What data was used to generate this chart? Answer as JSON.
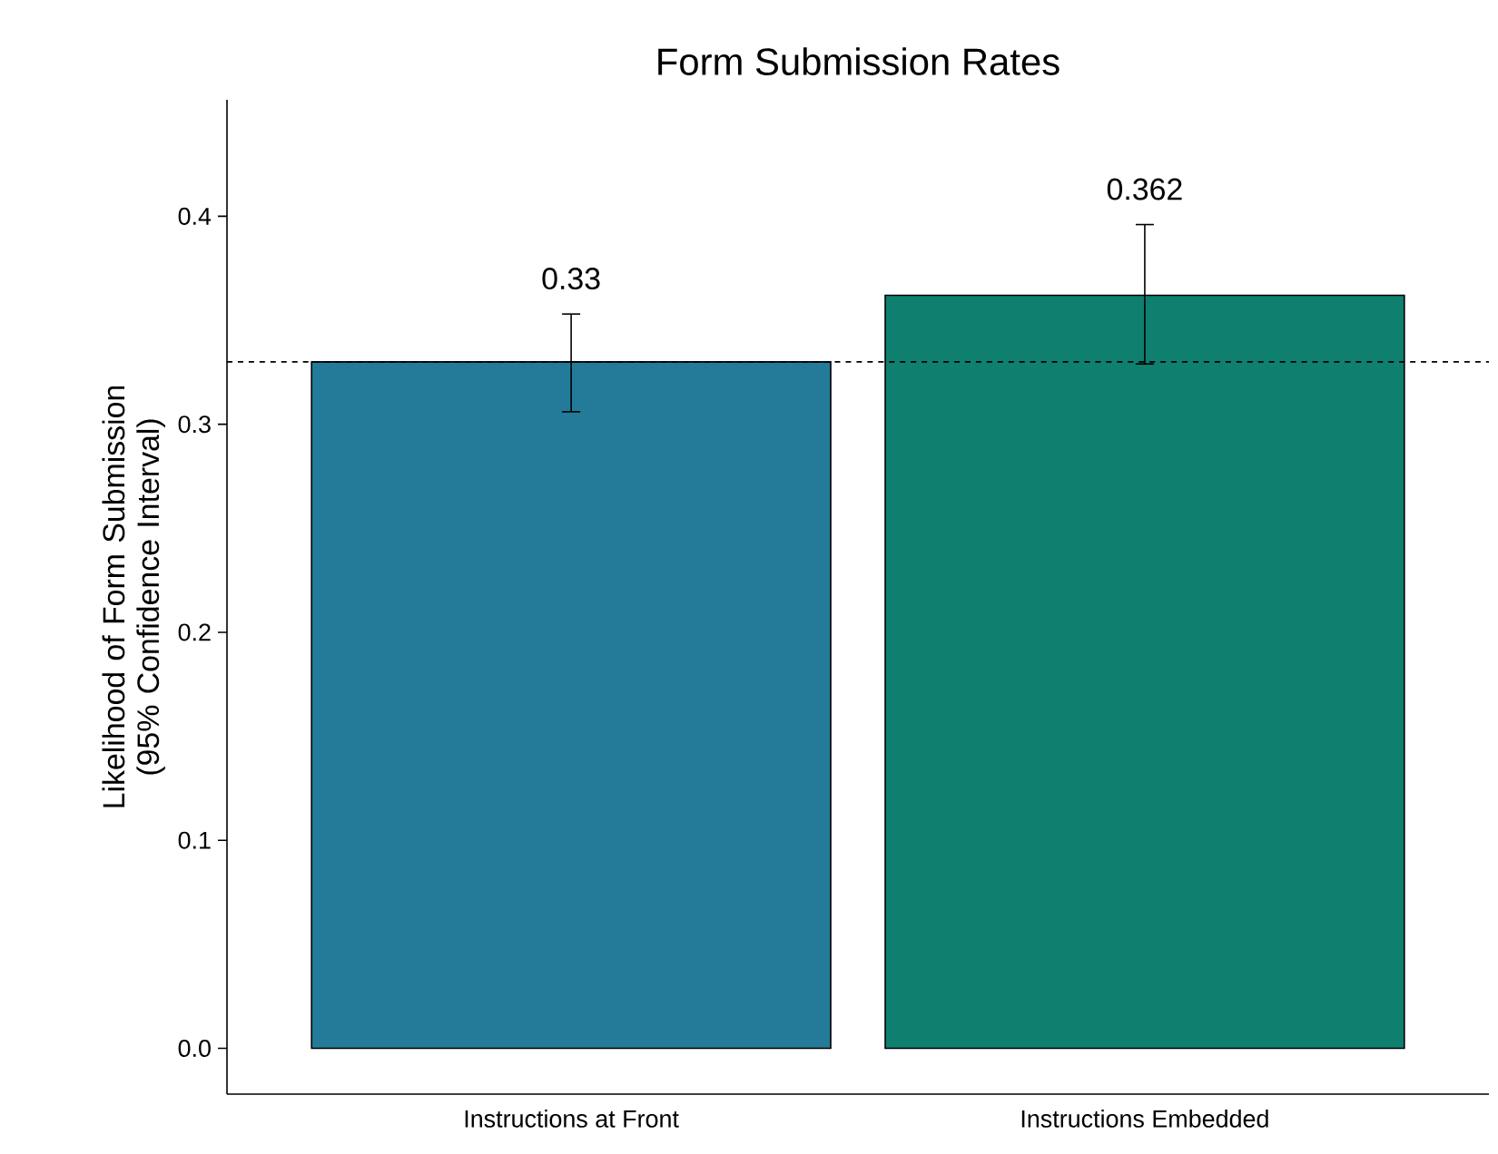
{
  "chart_data": {
    "type": "bar",
    "title": "Form Submission Rates",
    "ylabel": "Likelihood of Form Submission (95% Confidence Interval)",
    "categories": [
      "Instructions at Front",
      "Instructions Embedded"
    ],
    "values": [
      0.33,
      0.362
    ],
    "colors": [
      "#247b99",
      "#0f7f6f"
    ],
    "errors": [
      [
        0.306,
        0.353
      ],
      [
        0.329,
        0.396
      ]
    ],
    "value_labels": [
      "0.33",
      "0.362"
    ],
    "ylim": [
      -0.022,
      0.456
    ],
    "yticks": [
      {
        "value": 0,
        "label": "0.0"
      },
      0.1,
      0.2,
      0.3,
      0.4
    ],
    "ref_lines": [
      {
        "axis": "y",
        "value": 0.33,
        "line_style": "dashed",
        "color": "#000000"
      }
    ]
  }
}
